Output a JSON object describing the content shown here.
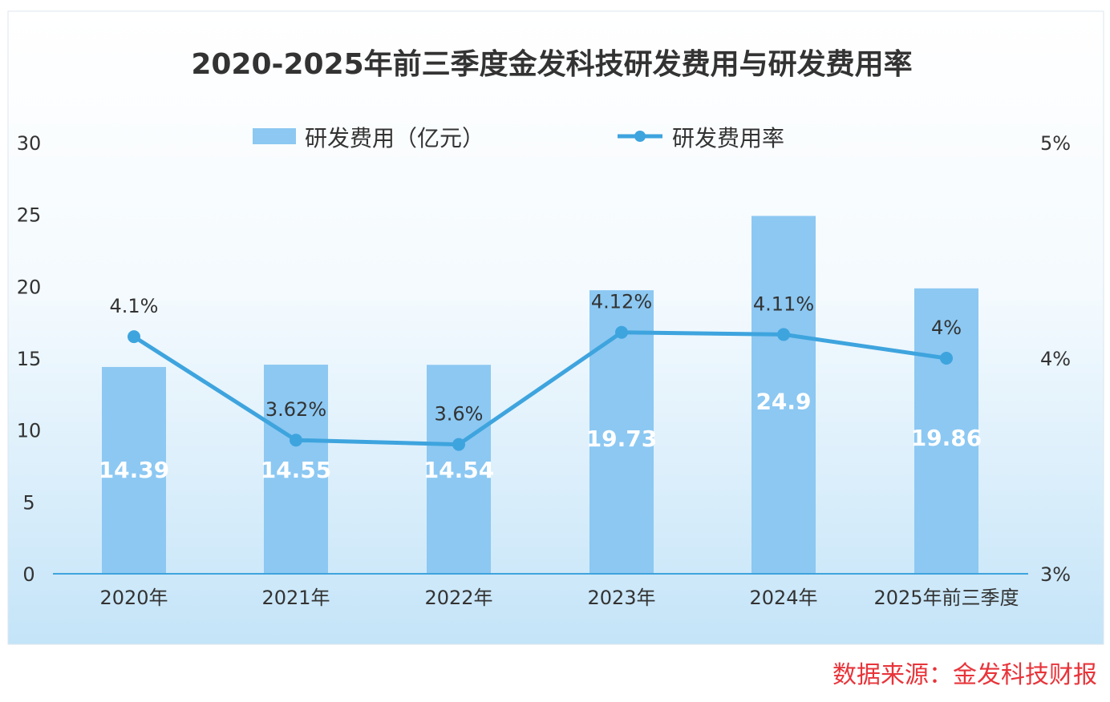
{
  "chart_data": {
    "type": "bar",
    "title": "2020-2025年前三季度金发科技研发费用与研发费用率",
    "categories": [
      "2020年",
      "2021年",
      "2022年",
      "2023年",
      "2024年",
      "2025年前三季度"
    ],
    "series": [
      {
        "name": "研发费用（亿元）",
        "type": "bar",
        "axis": "left",
        "color": "#8cc8f2",
        "values": [
          14.39,
          14.55,
          14.54,
          19.73,
          24.9,
          19.86
        ],
        "labels": [
          "14.39",
          "14.55",
          "14.54",
          "19.73",
          "24.9",
          "19.86"
        ]
      },
      {
        "name": "研发费用率",
        "type": "line",
        "axis": "right",
        "color": "#3ea4de",
        "values": [
          4.1,
          3.62,
          3.6,
          4.12,
          4.11,
          4.0
        ],
        "labels": [
          "4.1%",
          "3.62%",
          "3.6%",
          "4.12%",
          "4.11%",
          "4%"
        ]
      }
    ],
    "y_left": {
      "min": 0,
      "max": 30,
      "ticks": [
        "0",
        "5",
        "10",
        "15",
        "20",
        "25",
        "30"
      ]
    },
    "y_right": {
      "min": 3,
      "max": 5,
      "ticks": [
        "3%",
        "4%",
        "5%"
      ]
    },
    "grid": false,
    "legend_position": "top-center"
  },
  "source": "数据来源：金发科技财报",
  "colors": {
    "title": "#333333",
    "axis_text": "#333333",
    "source": "#e8343a",
    "baseline": "#3ea4de"
  }
}
